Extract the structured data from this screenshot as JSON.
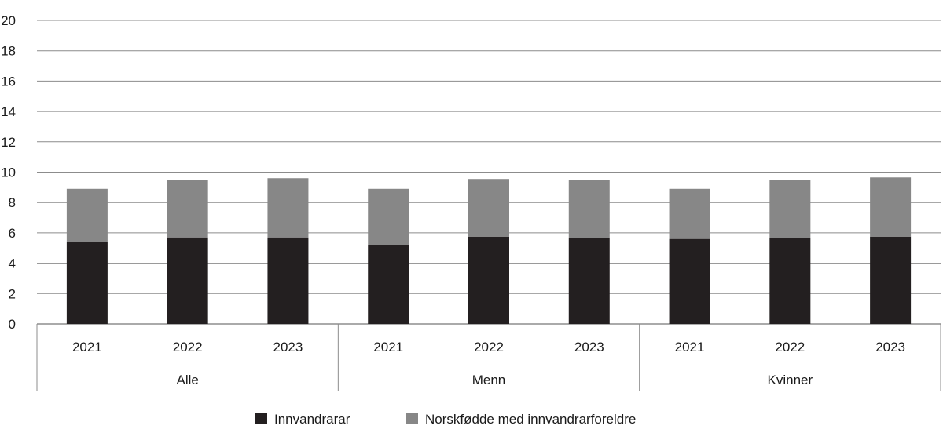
{
  "chart_data": {
    "type": "bar",
    "stacked": true,
    "title": "",
    "xlabel": "",
    "ylabel": "",
    "ylim": [
      0,
      20
    ],
    "yticks": [
      0,
      2,
      4,
      6,
      8,
      10,
      12,
      14,
      16,
      18,
      20
    ],
    "grid": true,
    "legend_position": "bottom",
    "groups": [
      {
        "label": "Alle",
        "categories": [
          "2021",
          "2022",
          "2023"
        ]
      },
      {
        "label": "Menn",
        "categories": [
          "2021",
          "2022",
          "2023"
        ]
      },
      {
        "label": "Kvinner",
        "categories": [
          "2021",
          "2022",
          "2023"
        ]
      }
    ],
    "series": [
      {
        "name": "Innvandrarar",
        "color": "#231f20",
        "values": [
          5.4,
          5.7,
          5.7,
          5.2,
          5.75,
          5.65,
          5.6,
          5.65,
          5.75
        ]
      },
      {
        "name": "Norskfødde med innvandrarforeldre",
        "color": "#878787",
        "values": [
          3.5,
          3.8,
          3.9,
          3.7,
          3.8,
          3.85,
          3.3,
          3.85,
          3.9
        ]
      }
    ]
  }
}
